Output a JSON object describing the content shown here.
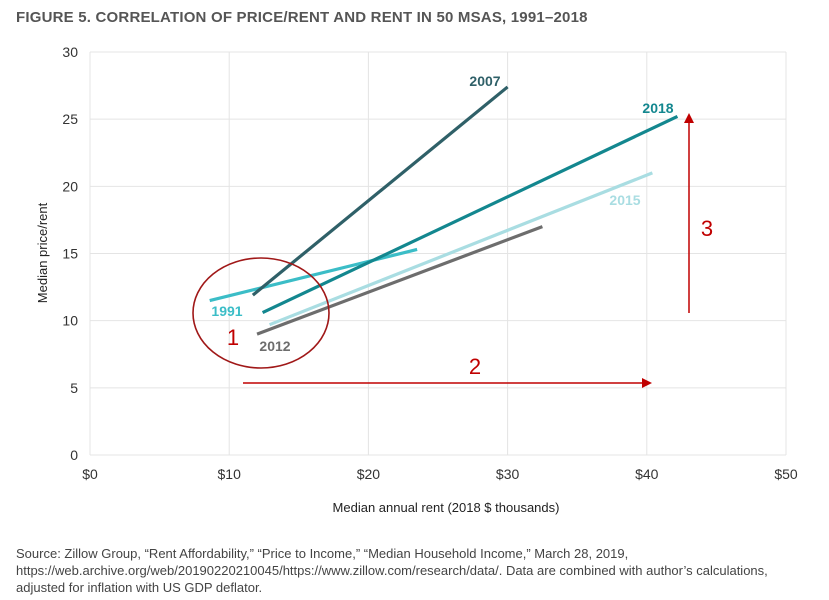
{
  "chart_data": {
    "type": "line",
    "title": "FIGURE 5. CORRELATION OF PRICE/RENT AND RENT IN 50 MSAS, 1991–2018",
    "xlabel": "Median annual rent (2018 $ thousands)",
    "ylabel": "Median price/rent",
    "xlim": [
      0,
      50
    ],
    "ylim": [
      0,
      30
    ],
    "x_ticks": [
      0,
      10,
      20,
      30,
      40,
      50
    ],
    "x_tick_labels": [
      "$0",
      "$10",
      "$20",
      "$30",
      "$40",
      "$50"
    ],
    "y_ticks": [
      0,
      5,
      10,
      15,
      20,
      25,
      30
    ],
    "y_tick_labels": [
      "0",
      "5",
      "10",
      "15",
      "20",
      "25",
      "30"
    ],
    "grid": true,
    "series": [
      {
        "name": "2007",
        "color": "#2f6068",
        "x": [
          11.7,
          30.0
        ],
        "y": [
          11.9,
          27.4
        ]
      },
      {
        "name": "2018",
        "color": "#13878f",
        "x": [
          12.4,
          42.2
        ],
        "y": [
          10.6,
          25.2
        ]
      },
      {
        "name": "1991",
        "color": "#3bbdc7",
        "x": [
          8.6,
          23.5
        ],
        "y": [
          11.5,
          15.3
        ]
      },
      {
        "name": "2015",
        "color": "#a9dde2",
        "x": [
          12.9,
          40.4
        ],
        "y": [
          9.7,
          21.0
        ]
      },
      {
        "name": "2012",
        "color": "#6d6d6d",
        "x": [
          12.0,
          32.5
        ],
        "y": [
          9.0,
          17.0
        ]
      }
    ],
    "annotations": [
      {
        "label": "1",
        "type": "circle",
        "color": "#a01818"
      },
      {
        "label": "2",
        "type": "horizontal-arrow",
        "color": "#c00000"
      },
      {
        "label": "3",
        "type": "vertical-arrow",
        "color": "#c00000"
      }
    ]
  },
  "source": "Source: Zillow Group, “Rent Affordability,” “Price to Income,” “Median Household Income,” March 28, 2019, https://web.archive.org/web/20190220210045/https://www.zillow.com/research/data/. Data are combined with author’s calculations, adjusted for inflation with US GDP deflator."
}
